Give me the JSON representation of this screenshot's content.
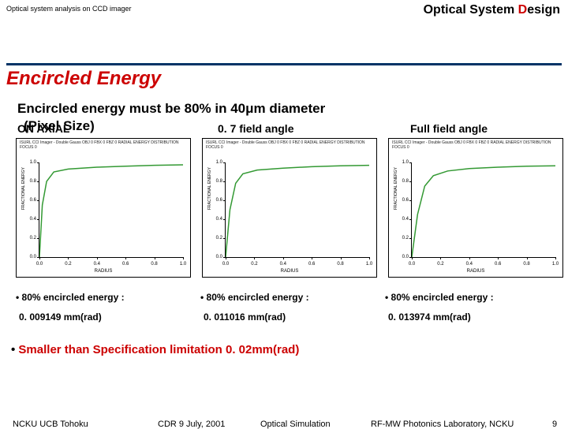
{
  "header": {
    "left": "Optical system analysis on CCD imager",
    "right_prefix": "Optical System ",
    "right_d": "D",
    "right_suffix": "esign"
  },
  "section_title": "Encircled Energy",
  "spec_line": "Encircled energy must be 80% in 40μm diameter",
  "pixel_size": "(Pixel Size)",
  "columns": {
    "on_axial": "ON AXIAL",
    "mid": "0. 7 field angle",
    "full": "Full field angle"
  },
  "chart": {
    "title_lines": [
      "ISURL CCI Imager - Double Gauss",
      "OBJ 0 FBX 0 FBZ 0",
      "RADIAL ENERGY DISTRIBUTION",
      "FOCUS 0"
    ],
    "ylabel": "FRACTIONAL ENERGY",
    "xlabel": "RADIUS",
    "ylim": [
      0,
      1.0
    ],
    "yticks": [
      0,
      0.2,
      0.4,
      0.6,
      0.8,
      1.0
    ],
    "xlim": [
      0,
      1.0
    ],
    "xticks": [
      0,
      0.2,
      0.4,
      0.6,
      0.8,
      1.0
    ],
    "curve_color": "#339933",
    "curves": [
      [
        [
          0,
          0
        ],
        [
          0.02,
          0.55
        ],
        [
          0.05,
          0.8
        ],
        [
          0.1,
          0.9
        ],
        [
          0.2,
          0.93
        ],
        [
          0.4,
          0.95
        ],
        [
          0.6,
          0.96
        ],
        [
          0.8,
          0.97
        ],
        [
          1.0,
          0.975
        ]
      ],
      [
        [
          0,
          0
        ],
        [
          0.03,
          0.5
        ],
        [
          0.07,
          0.78
        ],
        [
          0.12,
          0.88
        ],
        [
          0.22,
          0.92
        ],
        [
          0.4,
          0.94
        ],
        [
          0.6,
          0.955
        ],
        [
          0.8,
          0.965
        ],
        [
          1.0,
          0.97
        ]
      ],
      [
        [
          0,
          0
        ],
        [
          0.04,
          0.45
        ],
        [
          0.09,
          0.75
        ],
        [
          0.15,
          0.86
        ],
        [
          0.25,
          0.91
        ],
        [
          0.4,
          0.935
        ],
        [
          0.6,
          0.95
        ],
        [
          0.8,
          0.96
        ],
        [
          1.0,
          0.965
        ]
      ]
    ]
  },
  "results_label": "• 80% encircled energy :",
  "results_values": [
    "0. 009149 mm(rad)",
    "0. 011016 mm(rad)",
    "0. 013974 mm(rad)"
  ],
  "spec_limit": "Smaller than Specification limitation 0. 02mm(rad)",
  "footer": {
    "orgs": "NCKU    UCB    Tohoku",
    "cdr": "CDR  9 July, 2001",
    "sim": "Optical Simulation",
    "lab": "RF-MW Photonics Laboratory,   NCKU",
    "page": "9"
  }
}
